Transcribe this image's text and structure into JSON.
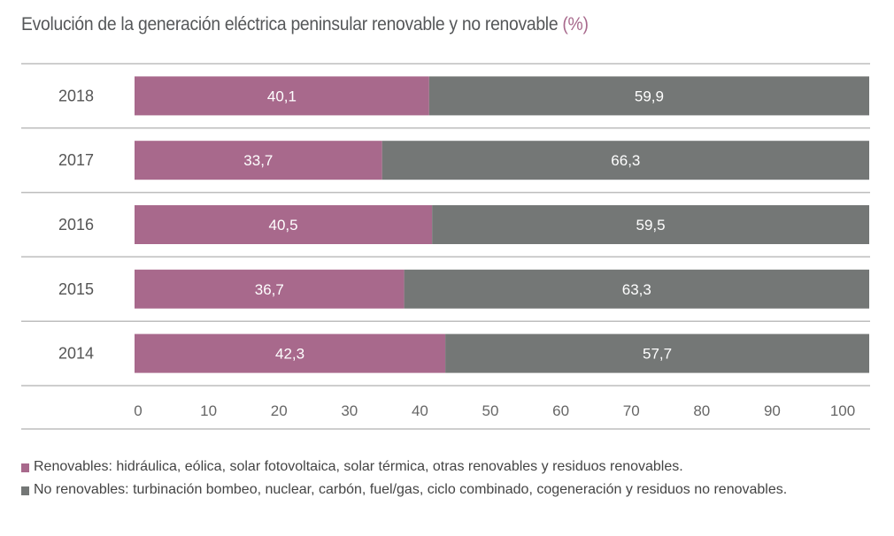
{
  "title": {
    "text": "Evolución de la generación eléctrica peninsular renovable y no renovable",
    "unit": "(%)"
  },
  "colors": {
    "renewable": "#a8698c",
    "non_renewable": "#747776",
    "gridline": "#bdbdbd",
    "label_text": "#ffffff"
  },
  "chart_data": {
    "type": "bar",
    "orientation": "horizontal",
    "stacked": true,
    "title": "Evolución de la generación eléctrica peninsular renovable y no renovable (%)",
    "xlabel": "",
    "ylabel": "",
    "categories": [
      "2018",
      "2017",
      "2016",
      "2015",
      "2014"
    ],
    "series": [
      {
        "name": "Renovables",
        "values": [
          40.1,
          33.7,
          40.5,
          36.7,
          42.3
        ],
        "labels": [
          "40,1",
          "33,7",
          "40,5",
          "36,7",
          "42,3"
        ]
      },
      {
        "name": "No renovables",
        "values": [
          59.9,
          66.3,
          59.5,
          63.3,
          57.7
        ],
        "labels": [
          "59,9",
          "66,3",
          "59,5",
          "63,3",
          "57,7"
        ]
      }
    ],
    "xlim": [
      0,
      100
    ],
    "xticks": [
      "0",
      "10",
      "20",
      "30",
      "40",
      "50",
      "60",
      "70",
      "80",
      "90",
      "100"
    ],
    "grid": false,
    "legend_position": "bottom"
  },
  "legend": [
    {
      "text": "Renovables: hidráulica, eólica, solar fotovoltaica, solar térmica, otras renovables y residuos renovables."
    },
    {
      "text": "No renovables: turbinación bombeo, nuclear, carbón, fuel/gas, ciclo combinado, cogeneración y residuos no renovables."
    }
  ]
}
